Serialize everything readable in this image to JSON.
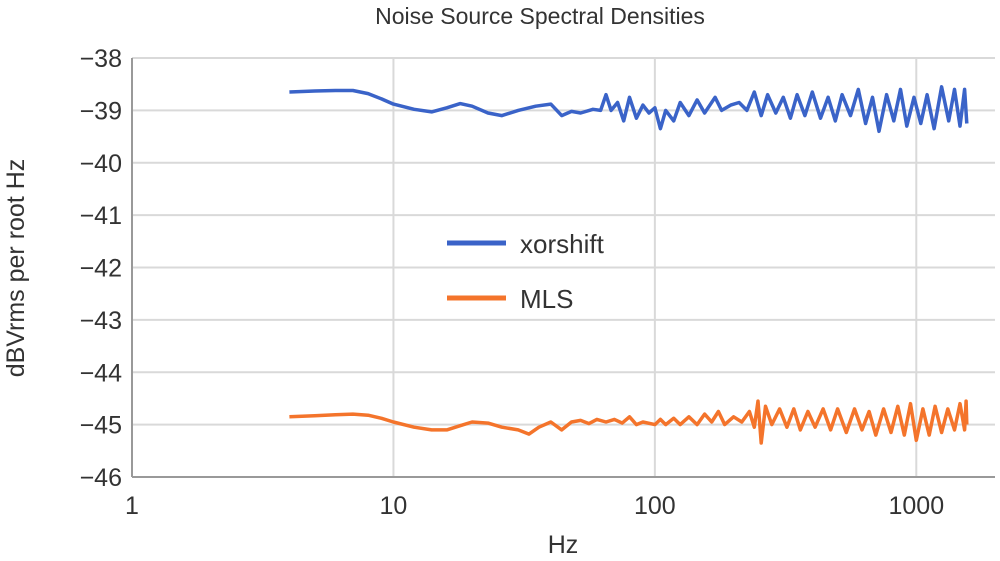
{
  "chart_data": {
    "type": "line",
    "title": "Noise Source Spectral Densities",
    "xlabel": "Hz",
    "ylabel": "dBVrms per root Hz",
    "x_scale": "log",
    "xlim": [
      1,
      2000
    ],
    "ylim": [
      -46,
      -38
    ],
    "x_ticks": [
      1,
      10,
      100,
      1000
    ],
    "x_tick_labels": [
      "1",
      "10",
      "100",
      "1000"
    ],
    "y_ticks": [
      -38,
      -39,
      -40,
      -41,
      -42,
      -43,
      -44,
      -45,
      -46
    ],
    "y_tick_labels": [
      "−38",
      "−39",
      "−40",
      "−41",
      "−42",
      "−43",
      "−44",
      "−45",
      "−46"
    ],
    "grid": true,
    "legend": "center",
    "series": [
      {
        "name": "xorshift",
        "color": "#3a63c8",
        "x": [
          4,
          5,
          6,
          7,
          8,
          9,
          10,
          12,
          14,
          16,
          18,
          20,
          23,
          26,
          30,
          35,
          40,
          44,
          48,
          52,
          58,
          62,
          65,
          68,
          72,
          76,
          80,
          85,
          90,
          95,
          100,
          105,
          110,
          118,
          125,
          135,
          145,
          155,
          170,
          180,
          195,
          210,
          225,
          240,
          255,
          270,
          290,
          310,
          330,
          350,
          375,
          400,
          430,
          460,
          490,
          520,
          560,
          600,
          640,
          680,
          720,
          770,
          820,
          870,
          920,
          980,
          1040,
          1100,
          1170,
          1250,
          1330,
          1400,
          1470,
          1530,
          1560
        ],
        "y": [
          -38.65,
          -38.63,
          -38.62,
          -38.62,
          -38.68,
          -38.78,
          -38.88,
          -38.98,
          -39.03,
          -38.95,
          -38.87,
          -38.92,
          -39.05,
          -39.1,
          -39.0,
          -38.92,
          -38.88,
          -39.1,
          -39.02,
          -39.05,
          -38.98,
          -39.0,
          -38.7,
          -39.0,
          -38.85,
          -39.2,
          -38.75,
          -39.15,
          -38.9,
          -39.05,
          -38.95,
          -39.35,
          -39.0,
          -39.2,
          -38.85,
          -39.1,
          -38.8,
          -39.05,
          -38.75,
          -39.0,
          -38.9,
          -38.85,
          -39.0,
          -38.65,
          -39.1,
          -38.7,
          -39.05,
          -38.75,
          -39.15,
          -38.7,
          -39.1,
          -38.65,
          -39.15,
          -38.75,
          -39.2,
          -38.7,
          -39.1,
          -38.6,
          -39.25,
          -38.75,
          -39.4,
          -38.7,
          -39.2,
          -38.6,
          -39.3,
          -38.75,
          -39.25,
          -38.7,
          -39.35,
          -38.55,
          -39.2,
          -38.6,
          -39.3,
          -38.6,
          -39.25
        ]
      },
      {
        "name": "MLS",
        "color": "#f4742b",
        "x": [
          4,
          5,
          6,
          7,
          8,
          9,
          10,
          12,
          14,
          16,
          18,
          20,
          23,
          26,
          30,
          33,
          36,
          40,
          44,
          48,
          52,
          56,
          60,
          65,
          70,
          75,
          80,
          85,
          90,
          100,
          105,
          110,
          118,
          125,
          135,
          145,
          155,
          165,
          175,
          185,
          200,
          215,
          230,
          240,
          248,
          255,
          265,
          280,
          300,
          320,
          340,
          360,
          385,
          410,
          440,
          470,
          500,
          540,
          580,
          620,
          660,
          700,
          750,
          800,
          850,
          900,
          950,
          1000,
          1060,
          1120,
          1180,
          1250,
          1320,
          1400,
          1470,
          1530,
          1550,
          1560
        ],
        "y": [
          -44.85,
          -44.83,
          -44.81,
          -44.8,
          -44.82,
          -44.88,
          -44.95,
          -45.05,
          -45.1,
          -45.1,
          -45.02,
          -44.95,
          -44.97,
          -45.05,
          -45.1,
          -45.18,
          -45.05,
          -44.95,
          -45.1,
          -44.95,
          -44.92,
          -44.98,
          -44.9,
          -44.95,
          -44.9,
          -44.97,
          -44.85,
          -45.0,
          -44.95,
          -45.0,
          -44.9,
          -45.0,
          -44.88,
          -45.0,
          -44.85,
          -45.0,
          -44.8,
          -44.95,
          -44.75,
          -45.0,
          -44.85,
          -44.95,
          -44.75,
          -45.05,
          -44.55,
          -45.35,
          -44.65,
          -45.0,
          -44.7,
          -45.05,
          -44.7,
          -45.1,
          -44.75,
          -45.05,
          -44.7,
          -45.1,
          -44.7,
          -45.15,
          -44.7,
          -45.1,
          -44.75,
          -45.2,
          -44.7,
          -45.15,
          -44.65,
          -45.2,
          -44.6,
          -45.3,
          -44.7,
          -45.2,
          -44.65,
          -45.15,
          -44.7,
          -45.1,
          -44.6,
          -45.1,
          -44.55,
          -45.0
        ]
      }
    ]
  }
}
